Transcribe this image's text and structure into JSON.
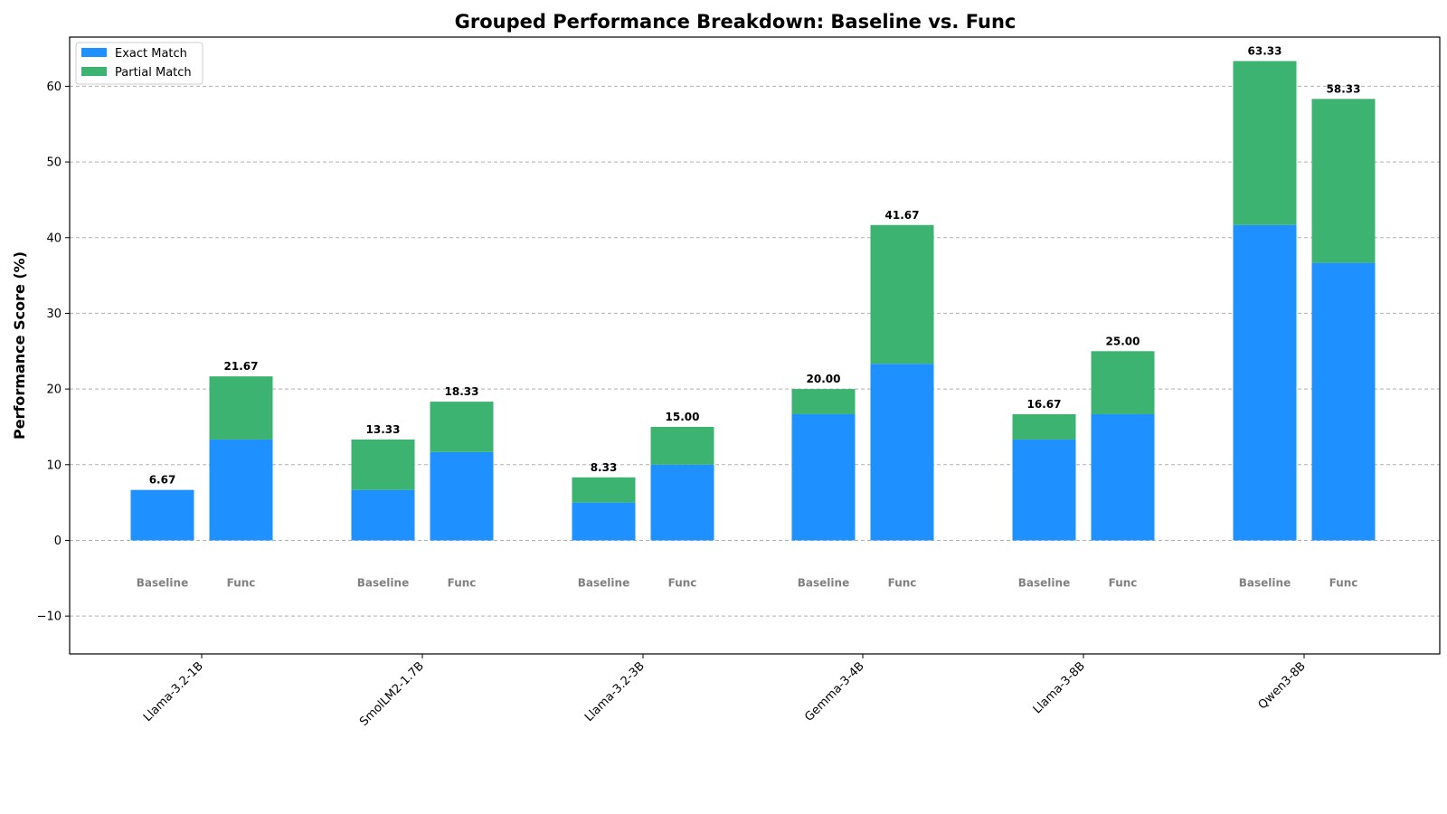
{
  "chart_data": {
    "type": "bar",
    "stacked": true,
    "title": "Grouped Performance Breakdown: Baseline vs. Func",
    "xlabel": "",
    "ylabel": "Performance Score (%)",
    "ylim": [
      -15,
      66.5
    ],
    "yticks": [
      -10,
      0,
      10,
      20,
      30,
      40,
      50,
      60
    ],
    "ytick_labels": [
      "−10",
      "0",
      "10",
      "20",
      "30",
      "40",
      "50",
      "60"
    ],
    "grid": "horizontal, dashed",
    "legend_placement": "top-left",
    "categories": [
      "Llama-3.2-1B",
      "SmolLM2-1.7B",
      "Llama-3.2-3B",
      "Gemma-3-4B",
      "Llama-3-8B",
      "Qwen3-8B"
    ],
    "variants": [
      "Baseline",
      "Func"
    ],
    "series": [
      {
        "name": "Exact Match",
        "color": "#1e90ff",
        "values": {
          "Baseline": [
            6.67,
            6.67,
            5.0,
            16.67,
            13.33,
            41.67
          ],
          "Func": [
            13.33,
            11.67,
            10.0,
            23.33,
            16.67,
            36.67
          ]
        }
      },
      {
        "name": "Partial Match",
        "color": "#3cb371",
        "values": {
          "Baseline": [
            0.0,
            6.66,
            3.33,
            3.33,
            3.34,
            21.66
          ],
          "Func": [
            8.34,
            6.66,
            5.0,
            18.34,
            8.33,
            21.66
          ]
        }
      }
    ],
    "totals": {
      "Baseline": [
        6.67,
        13.33,
        8.33,
        20.0,
        16.67,
        63.33
      ],
      "Func": [
        21.67,
        18.33,
        15.0,
        41.67,
        25.0,
        58.33
      ]
    },
    "total_labels": {
      "Baseline": [
        "6.67",
        "13.33",
        "8.33",
        "20.00",
        "16.67",
        "63.33"
      ],
      "Func": [
        "21.67",
        "18.33",
        "15.00",
        "41.67",
        "25.00",
        "58.33"
      ]
    }
  }
}
